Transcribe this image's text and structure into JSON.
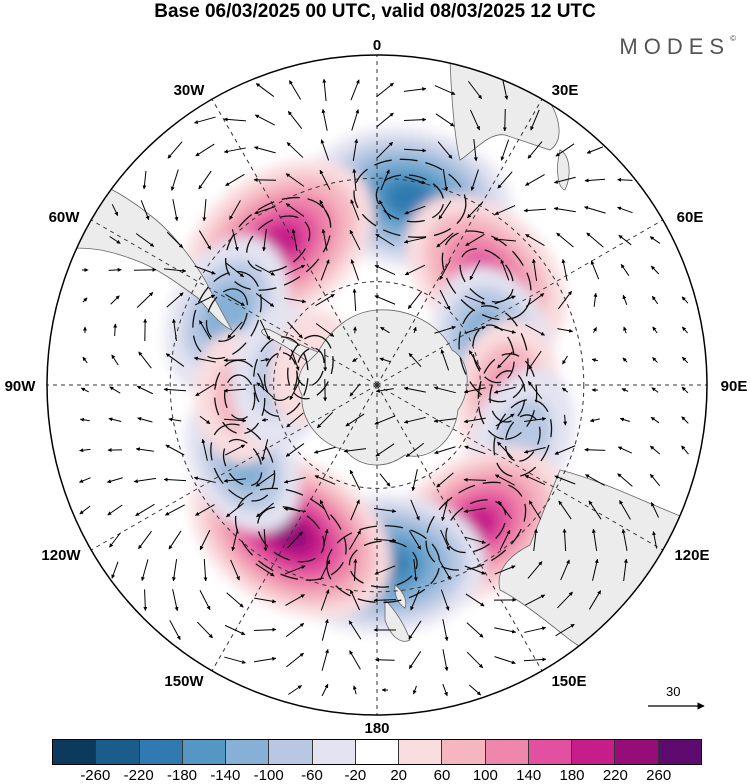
{
  "title": "Base 06/03/2025 00 UTC, valid 08/03/2025 12 UTC",
  "brand": "MODES",
  "brand_mark": "©",
  "longitude_labels": {
    "lon_0": "0",
    "lon_30e": "30E",
    "lon_60e": "60E",
    "lon_90e": "90E",
    "lon_120e": "120E",
    "lon_150e": "150E",
    "lon_180": "180",
    "lon_150w": "150W",
    "lon_120w": "120W",
    "lon_90w": "90W",
    "lon_60w": "60W",
    "lon_30w": "30W"
  },
  "reference_vector": "30",
  "colorbar": {
    "colors": [
      "#0b3a5c",
      "#1a5d8c",
      "#2f7ab0",
      "#5497c5",
      "#86b0d5",
      "#b8c8e3",
      "#e3e3f1",
      "#ffffff",
      "#f9dddf",
      "#f5b6c0",
      "#ee87ab",
      "#e2519f",
      "#c71d8a",
      "#960d7a",
      "#5e0a6e"
    ],
    "tick_labels": [
      "-260",
      "-220",
      "-180",
      "-140",
      "-100",
      "-60",
      "-20",
      "20",
      "60",
      "100",
      "140",
      "180",
      "220",
      "260"
    ]
  },
  "anomaly_centers": [
    {
      "lon": 10,
      "lat": -35,
      "value": -200
    },
    {
      "lon": -35,
      "lat": -40,
      "value": 210
    },
    {
      "lon": -65,
      "lat": -42,
      "value": -130
    },
    {
      "lon": 45,
      "lat": -45,
      "value": 170
    },
    {
      "lon": 75,
      "lat": -55,
      "value": -150
    },
    {
      "lon": 95,
      "lat": -52,
      "value": 110
    },
    {
      "lon": 110,
      "lat": -45,
      "value": -90
    },
    {
      "lon": 145,
      "lat": -40,
      "value": 190
    },
    {
      "lon": 178,
      "lat": -38,
      "value": -200
    },
    {
      "lon": -150,
      "lat": -40,
      "value": 220
    },
    {
      "lon": -120,
      "lat": -45,
      "value": -100
    },
    {
      "lon": -95,
      "lat": -50,
      "value": 70
    },
    {
      "lon": -85,
      "lat": -62,
      "value": -90
    },
    {
      "lon": -75,
      "lat": -70,
      "value": 40
    }
  ]
}
